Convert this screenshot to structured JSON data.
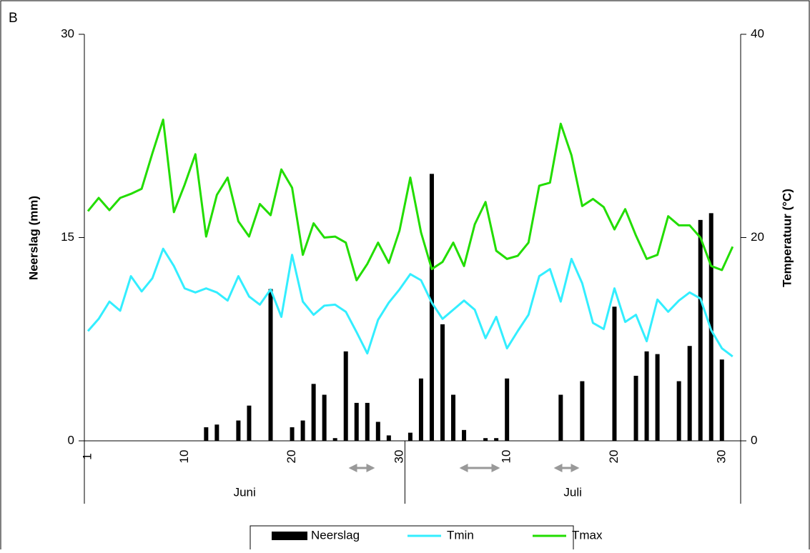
{
  "chart_data": {
    "type": "combo",
    "panel_label": "B",
    "ylabel": "Neerslag (mm)",
    "y2label": "Temperatuur (°C)",
    "categories": [
      "1",
      null,
      null,
      null,
      null,
      null,
      null,
      null,
      null,
      "10",
      null,
      null,
      null,
      null,
      null,
      null,
      null,
      null,
      null,
      "20",
      null,
      null,
      null,
      null,
      null,
      null,
      null,
      null,
      null,
      "30",
      null,
      null,
      null,
      null,
      null,
      null,
      null,
      null,
      null,
      "10",
      null,
      null,
      null,
      null,
      null,
      null,
      null,
      null,
      null,
      "20",
      null,
      null,
      null,
      null,
      null,
      null,
      null,
      null,
      null,
      "30",
      null
    ],
    "x_groups": [
      "Juni",
      "Juli"
    ],
    "ylim": [
      0,
      30
    ],
    "yticks": [
      0,
      15,
      30
    ],
    "y2lim": [
      0,
      40
    ],
    "y2ticks": [
      0,
      20,
      40
    ],
    "series": [
      {
        "name": "Neerslag",
        "type": "bar",
        "color": "#000000",
        "values": [
          0,
          0,
          0,
          0,
          0,
          0,
          0,
          0,
          0,
          0,
          0,
          1.0,
          1.2,
          0,
          1.5,
          2.6,
          0,
          11.2,
          0,
          1.0,
          1.5,
          4.2,
          3.4,
          0.2,
          6.6,
          2.8,
          2.8,
          1.4,
          0.4,
          0,
          0.6,
          4.6,
          19.7,
          8.6,
          3.4,
          0.8,
          0,
          0.2,
          0.2,
          4.6,
          0,
          0,
          0,
          0,
          3.4,
          0,
          4.4,
          0,
          0,
          9.9,
          0,
          4.8,
          6.6,
          6.4,
          0,
          4.4,
          7.0,
          16.3,
          16.8,
          6.0,
          0
        ]
      },
      {
        "name": "Tmin",
        "type": "line",
        "axis": "y2",
        "color": "#33eeff",
        "values": [
          10.8,
          12.0,
          13.7,
          12.8,
          16.2,
          14.7,
          16.0,
          18.9,
          17.2,
          15.0,
          14.6,
          15.0,
          14.6,
          13.8,
          16.2,
          14.2,
          13.4,
          14.9,
          12.2,
          18.3,
          13.7,
          12.4,
          13.3,
          13.4,
          12.7,
          10.7,
          8.6,
          11.9,
          13.6,
          14.9,
          16.4,
          15.8,
          13.6,
          12.0,
          12.9,
          13.8,
          12.9,
          10.1,
          12.2,
          9.1,
          10.8,
          12.4,
          16.2,
          16.9,
          13.7,
          17.9,
          15.5,
          11.6,
          11.0,
          15.0,
          11.7,
          12.4,
          9.8,
          13.9,
          12.7,
          13.8,
          14.6,
          14.0,
          10.9,
          9.1,
          8.3
        ]
      },
      {
        "name": "Tmax",
        "type": "line",
        "axis": "y2",
        "color": "#22dd00",
        "values": [
          22.6,
          23.9,
          22.7,
          23.9,
          24.3,
          24.8,
          28.3,
          31.6,
          22.5,
          25.2,
          28.2,
          20.1,
          24.2,
          25.9,
          21.6,
          20.1,
          23.3,
          22.2,
          26.7,
          24.9,
          18.3,
          21.4,
          20.0,
          20.1,
          19.5,
          15.8,
          17.4,
          19.5,
          17.5,
          20.7,
          25.9,
          20.5,
          16.9,
          17.6,
          19.5,
          17.2,
          21.3,
          23.5,
          18.7,
          17.9,
          18.2,
          19.5,
          25.1,
          25.4,
          31.2,
          28.1,
          23.1,
          23.8,
          23.0,
          20.8,
          22.8,
          20.2,
          17.9,
          18.3,
          22.1,
          21.2,
          21.2,
          20.0,
          17.2,
          16.8,
          19.1
        ]
      }
    ]
  }
}
